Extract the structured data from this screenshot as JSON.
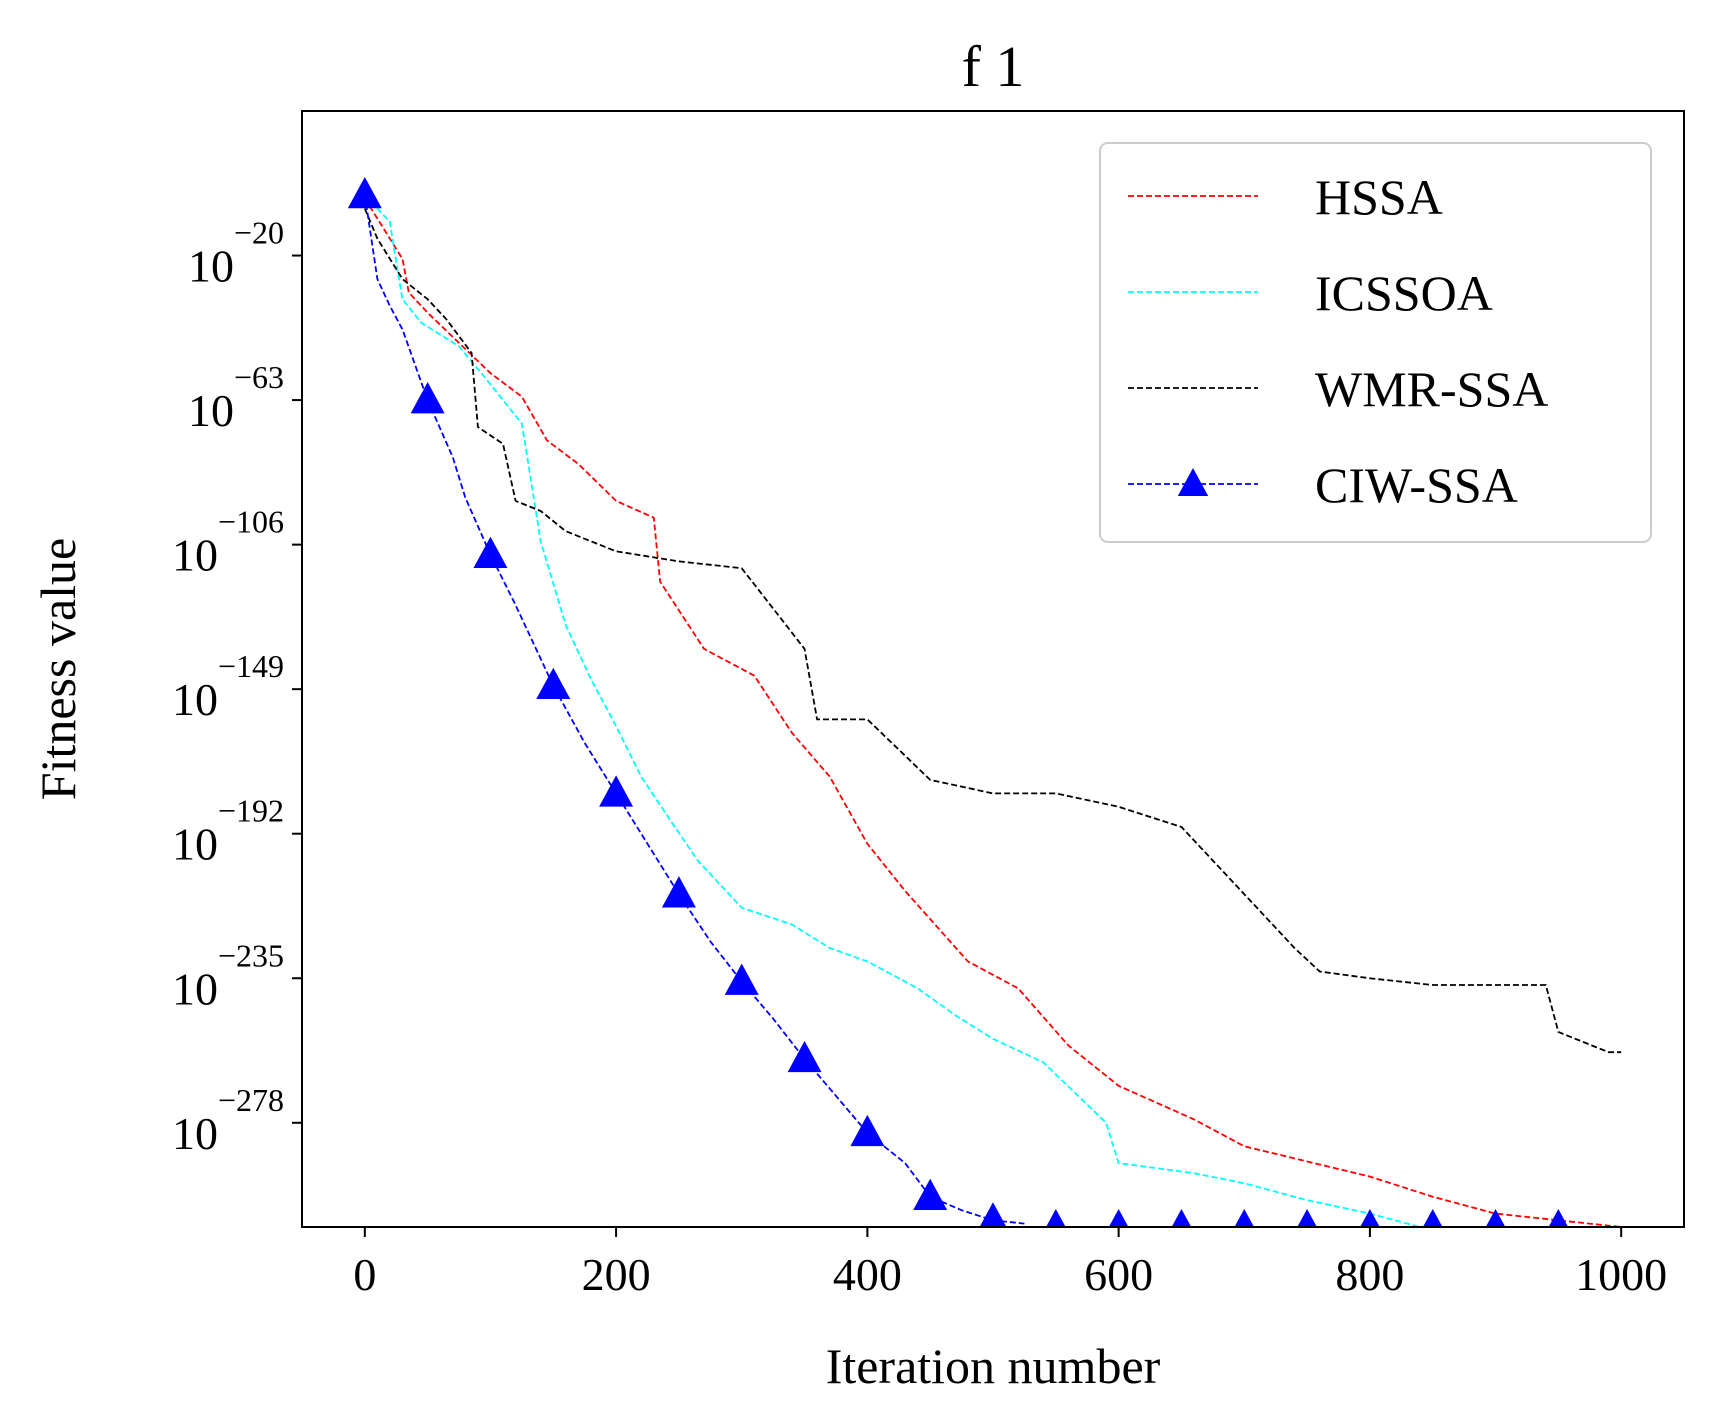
{
  "chart_data": {
    "type": "line",
    "title": "f 1",
    "xlabel": "Iteration number",
    "ylabel": "Fitness value",
    "xlim": [
      -50,
      1050
    ],
    "ylim_log10": [
      -309,
      23
    ],
    "y_scale": "log",
    "x_ticks": [
      0,
      200,
      400,
      600,
      800,
      1000
    ],
    "y_ticks": [
      {
        "base": "10",
        "exp": "−20",
        "value": -20
      },
      {
        "base": "10",
        "exp": "−63",
        "value": -63
      },
      {
        "base": "10",
        "exp": "−106",
        "value": -106
      },
      {
        "base": "10",
        "exp": "−149",
        "value": -149
      },
      {
        "base": "10",
        "exp": "−192",
        "value": -192
      },
      {
        "base": "10",
        "exp": "−235",
        "value": -235
      },
      {
        "base": "10",
        "exp": "−278",
        "value": -278
      }
    ],
    "grid": false,
    "legend_position": "top-right",
    "series": [
      {
        "name": "HSSA",
        "color": "#ff0000",
        "style": "dashed",
        "marker": "none",
        "x": [
          0,
          10,
          20,
          30,
          35,
          50,
          75,
          100,
          125,
          145,
          170,
          200,
          230,
          235,
          270,
          310,
          340,
          370,
          400,
          430,
          480,
          520,
          560,
          600,
          660,
          700,
          800,
          850,
          900,
          950,
          1000
        ],
        "log10_y": [
          -3,
          -9,
          -15,
          -21,
          -31,
          -37,
          -46,
          -55,
          -62,
          -75,
          -82,
          -93,
          -98,
          -117,
          -137,
          -145,
          -162,
          -175,
          -195,
          -209,
          -230,
          -238,
          -255,
          -267,
          -277,
          -285,
          -294,
          -300,
          -305,
          -307,
          -309
        ]
      },
      {
        "name": "ICSSOA",
        "color": "#00ffff",
        "style": "dashed",
        "marker": "none",
        "x": [
          0,
          20,
          25,
          30,
          45,
          75,
          95,
          125,
          140,
          160,
          180,
          200,
          220,
          245,
          265,
          300,
          340,
          370,
          400,
          440,
          470,
          500,
          540,
          590,
          600,
          660,
          700,
          750,
          800,
          900,
          950,
          1000
        ],
        "log10_y": [
          -2,
          -10,
          -22,
          -33,
          -40,
          -47,
          -56,
          -70,
          -105,
          -130,
          -146,
          -160,
          -175,
          -189,
          -200,
          -214,
          -219,
          -226,
          -230,
          -238,
          -246,
          -253,
          -260,
          -278,
          -290,
          -293,
          -296,
          -301,
          -305,
          -315,
          -320,
          -324
        ]
      },
      {
        "name": "WMR-SSA",
        "color": "#000000",
        "style": "dashed",
        "marker": "none",
        "x": [
          0,
          10,
          30,
          50,
          65,
          85,
          90,
          110,
          120,
          140,
          160,
          180,
          200,
          250,
          300,
          350,
          360,
          400,
          450,
          500,
          550,
          600,
          650,
          700,
          720,
          740,
          760,
          800,
          850,
          900,
          940,
          950,
          990,
          1000
        ],
        "log10_y": [
          -6,
          -15,
          -27,
          -33,
          -39,
          -49,
          -71,
          -76,
          -93,
          -96,
          -102,
          -105,
          -108,
          -111,
          -113,
          -137,
          -158,
          -158,
          -176,
          -180,
          -180,
          -184,
          -190,
          -210,
          -218,
          -226,
          -233,
          -235,
          -237,
          -237,
          -237,
          -251,
          -257,
          -257
        ]
      },
      {
        "name": "CIW-SSA",
        "color": "#0000ff",
        "style": "dashed",
        "marker": "triangle",
        "x": [
          0,
          10,
          20,
          30,
          50,
          70,
          80,
          100,
          120,
          150,
          175,
          200,
          225,
          250,
          275,
          300,
          325,
          350,
          375,
          400,
          430,
          450,
          475,
          500,
          525
        ],
        "log10_y": [
          -2,
          -27,
          -35,
          -42,
          -63,
          -80,
          -92,
          -109,
          -124,
          -148,
          -165,
          -180,
          -195,
          -210,
          -224,
          -236,
          -247,
          -259,
          -270,
          -281,
          -290,
          -300,
          -304,
          -307,
          -308
        ],
        "marker_x": [
          0,
          50,
          100,
          150,
          200,
          250,
          300,
          350,
          400,
          450,
          500,
          550,
          600,
          650,
          700,
          750,
          800,
          850,
          900,
          950
        ],
        "marker_log10_y": [
          -2,
          -63,
          -109,
          -148,
          -180,
          -210,
          -236,
          -259,
          -281,
          -300,
          -307,
          -309,
          -309,
          -309,
          -309,
          -309,
          -309,
          -309,
          -309,
          -309
        ]
      }
    ]
  }
}
